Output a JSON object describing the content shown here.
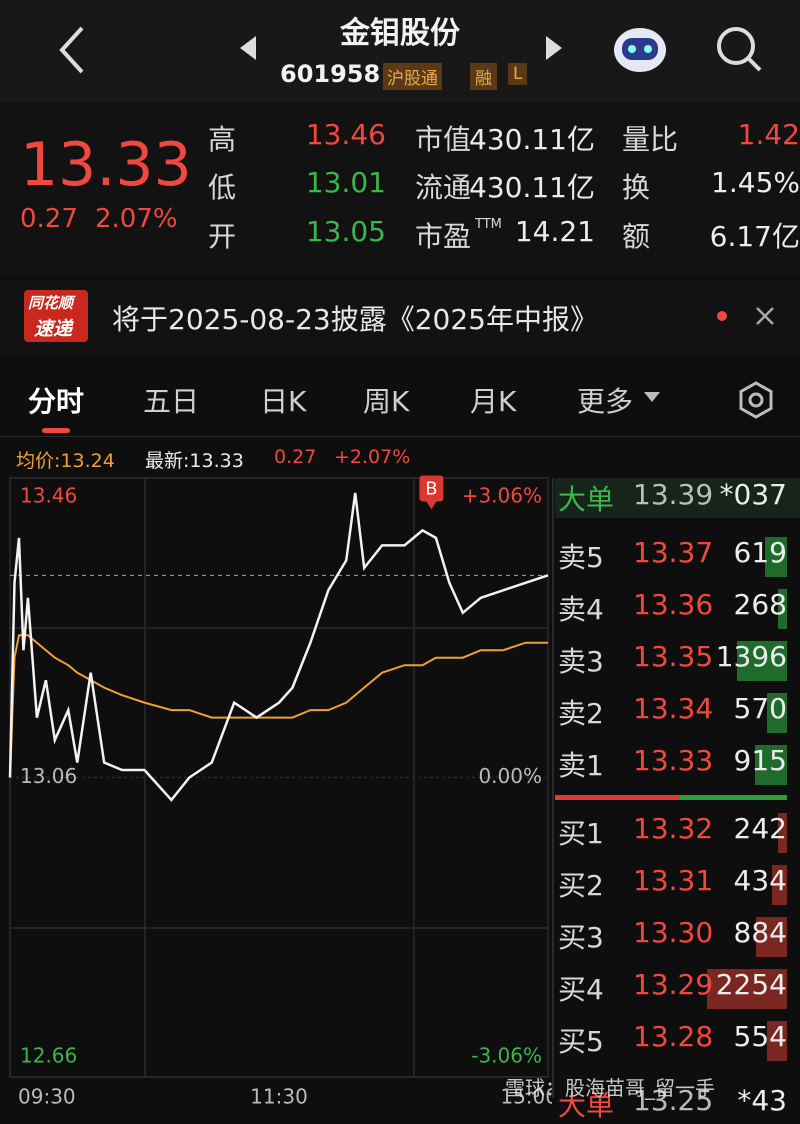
{
  "header": {
    "title": "金钼股份",
    "code": "601958",
    "tags": [
      "沪股通",
      "融",
      "L"
    ]
  },
  "quote": {
    "price": "13.33",
    "change": "0.27",
    "change_pct": "2.07%",
    "stats": [
      {
        "label": "高",
        "value": "13.46"
      },
      {
        "label": "市值",
        "value": "430.11亿"
      },
      {
        "label": "量比",
        "value": "1.42"
      },
      {
        "label": "低",
        "value": "13.01"
      },
      {
        "label": "流通",
        "value": "430.11亿"
      },
      {
        "label": "换",
        "value": "1.45%"
      },
      {
        "label": "开",
        "value": "13.05"
      },
      {
        "label": "市盈",
        "sup": "TTM",
        "value": "14.21"
      },
      {
        "label": "额",
        "value": "6.17亿"
      }
    ]
  },
  "news": {
    "badge": [
      "同花顺",
      "速递"
    ],
    "text": "将于2025-08-23披露《2025年中报》"
  },
  "tabs": [
    "分时",
    "五日",
    "日K",
    "周K",
    "月K",
    "更多"
  ],
  "info_bar": [
    "均价:13.24",
    "最新:13.33",
    "0.27",
    "+2.07%"
  ],
  "chart_data": {
    "type": "line",
    "x": [
      0,
      2,
      4,
      6,
      8,
      12,
      16,
      20,
      26,
      30,
      36,
      42,
      50,
      60,
      72,
      80,
      90,
      100,
      110,
      120,
      126,
      134,
      142,
      150,
      154,
      158,
      166,
      176,
      184,
      190,
      196,
      202,
      210,
      220,
      230,
      240
    ],
    "xlim": [
      0,
      240
    ],
    "xticks": [
      {
        "value": 0,
        "label": "09:30"
      },
      {
        "value": 120,
        "label": "11:30"
      },
      {
        "value": 240,
        "label": "15:00"
      }
    ],
    "ylim": [
      12.66,
      13.46
    ],
    "yticks": [
      12.66,
      13.06,
      13.46
    ],
    "y2lim": [
      -3.06,
      3.06
    ],
    "y2ticks": [
      {
        "value": -3.06,
        "label": "-3.06%"
      },
      {
        "value": 0,
        "label": "0.00%"
      },
      {
        "value": 3.06,
        "label": "+3.06%"
      }
    ],
    "series": [
      {
        "color": "#f2f2f2",
        "values": [
          13.06,
          13.32,
          13.38,
          13.23,
          13.3,
          13.14,
          13.19,
          13.11,
          13.15,
          13.08,
          13.2,
          13.08,
          13.07,
          13.07,
          13.03,
          13.06,
          13.08,
          13.16,
          13.14,
          13.16,
          13.18,
          13.24,
          13.31,
          13.35,
          13.44,
          13.34,
          13.37,
          13.37,
          13.39,
          13.38,
          13.32,
          13.28,
          13.3,
          13.31,
          13.32,
          13.33
        ]
      },
      {
        "color": "#f0a030",
        "values": [
          13.06,
          13.22,
          13.25,
          13.25,
          13.25,
          13.24,
          13.23,
          13.22,
          13.21,
          13.2,
          13.19,
          13.18,
          13.17,
          13.16,
          13.15,
          13.15,
          13.14,
          13.14,
          13.14,
          13.14,
          13.14,
          13.15,
          13.15,
          13.16,
          13.17,
          13.18,
          13.2,
          13.21,
          13.21,
          13.22,
          13.22,
          13.22,
          13.23,
          13.23,
          13.24,
          13.24
        ]
      }
    ],
    "annotations": [
      {
        "text": "B",
        "x": 188,
        "y": 13.41
      }
    ],
    "grid": true
  },
  "order_book": {
    "big_top": {
      "label": "大单",
      "price": "13.39",
      "volume": "*037"
    },
    "asks": [
      {
        "label": "卖5",
        "price": "13.37",
        "volume": 619
      },
      {
        "label": "卖4",
        "price": "13.36",
        "volume": 268
      },
      {
        "label": "卖3",
        "price": "13.35",
        "volume": 1396
      },
      {
        "label": "卖2",
        "price": "13.34",
        "volume": 570
      },
      {
        "label": "卖1",
        "price": "13.33",
        "volume": 915
      }
    ],
    "bids": [
      {
        "label": "买1",
        "price": "13.32",
        "volume": 242
      },
      {
        "label": "买2",
        "price": "13.31",
        "volume": 434
      },
      {
        "label": "买3",
        "price": "13.30",
        "volume": 884
      },
      {
        "label": "买4",
        "price": "13.29",
        "volume": 2254
      },
      {
        "label": "买5",
        "price": "13.28",
        "volume": 554
      }
    ],
    "big_bottom": {
      "label": "大单",
      "price": "13.25",
      "volume": "*43"
    }
  },
  "watermark": "雪球：股海苗哥_留一手"
}
